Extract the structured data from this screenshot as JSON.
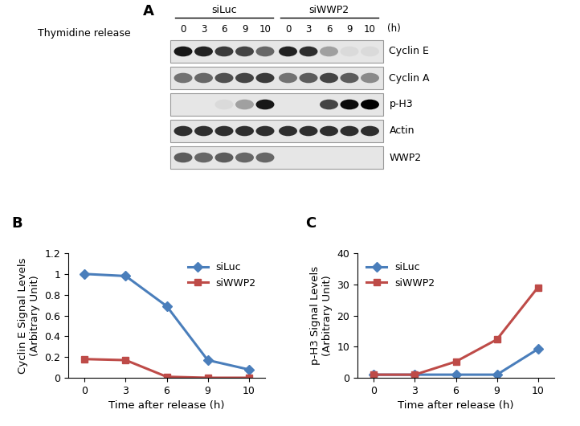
{
  "blot": {
    "panel_label": "A",
    "title": "Thymidine release",
    "unit": "(h)",
    "groups": [
      {
        "name": "siLuc",
        "times": [
          0,
          3,
          6,
          9,
          10
        ]
      },
      {
        "name": "siWWP2",
        "times": [
          0,
          3,
          6,
          9,
          10
        ]
      }
    ],
    "rows": [
      {
        "name": "Cyclin E",
        "intensities": [
          0.9,
          0.85,
          0.75,
          0.7,
          0.55,
          0.85,
          0.8,
          0.3,
          0.05,
          0.05
        ]
      },
      {
        "name": "Cyclin A",
        "intensities": [
          0.5,
          0.55,
          0.65,
          0.7,
          0.75,
          0.5,
          0.6,
          0.7,
          0.6,
          0.4
        ]
      },
      {
        "name": "p-H3",
        "intensities": [
          0,
          0,
          0.05,
          0.3,
          0.9,
          0,
          0,
          0.7,
          0.95,
          1
        ]
      },
      {
        "name": "Actin",
        "intensities": [
          0.8,
          0.8,
          0.8,
          0.8,
          0.8,
          0.8,
          0.8,
          0.8,
          0.8,
          0.8
        ]
      },
      {
        "name": "WWP2",
        "intensities": [
          0.6,
          0.55,
          0.6,
          0.55,
          0.55,
          0,
          0,
          0,
          0,
          0
        ]
      }
    ]
  },
  "chart_data": [
    {
      "type": "line",
      "panel_label": "B",
      "x_label": "Time after release (h)",
      "y_label": "Cyclin E Signal Levels\n(Arbitrary Unit)",
      "categories": [
        "0",
        "3",
        "6",
        "9",
        "10"
      ],
      "ylim": [
        0,
        1.2
      ],
      "yticks": [
        0,
        0.2,
        0.4,
        0.6,
        0.8,
        1,
        1.2
      ],
      "legend": "upper right",
      "series": [
        {
          "name": "siLuc",
          "color": "#4a7ebb",
          "marker": "diamond",
          "values": [
            1,
            0.98,
            0.69,
            0.17,
            0.08
          ]
        },
        {
          "name": "siWWP2",
          "color": "#be4b48",
          "marker": "square",
          "values": [
            0.18,
            0.17,
            0.01,
            0,
            0
          ]
        }
      ]
    },
    {
      "type": "line",
      "panel_label": "C",
      "x_label": "Time after release (h)",
      "y_label": "p-H3 Signal Levels\n(Arbitrary Unit)",
      "categories": [
        "0",
        "3",
        "6",
        "9",
        "10"
      ],
      "ylim": [
        0,
        40
      ],
      "yticks": [
        0,
        10,
        20,
        30,
        40
      ],
      "legend": "upper left",
      "series": [
        {
          "name": "siLuc",
          "color": "#4a7ebb",
          "marker": "diamond",
          "values": [
            1,
            1,
            1,
            1,
            9.2
          ]
        },
        {
          "name": "siWWP2",
          "color": "#be4b48",
          "marker": "square",
          "values": [
            1,
            1,
            5.2,
            12.3,
            29
          ]
        }
      ]
    }
  ]
}
